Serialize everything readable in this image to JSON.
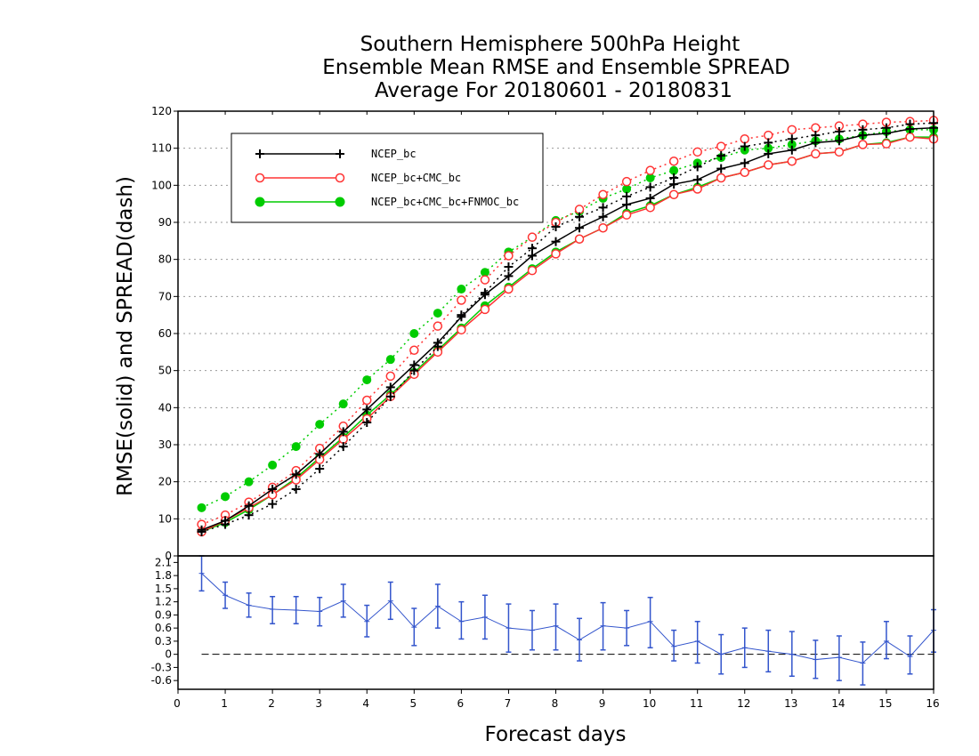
{
  "chart_data": [
    {
      "type": "line",
      "title": [
        "Southern Hemisphere 500hPa Height",
        "Ensemble Mean RMSE and Ensemble SPREAD",
        "Average For 20180601 - 20180831"
      ],
      "ylabel": "RMSE(solid) and SPREAD(dash)",
      "xlim": [
        0,
        16
      ],
      "ylim": [
        0,
        120
      ],
      "yticks": [
        0,
        10,
        20,
        30,
        40,
        50,
        60,
        70,
        80,
        90,
        100,
        110,
        120
      ],
      "grid": true,
      "legend_position": "top-left",
      "x": [
        0.5,
        1,
        1.5,
        2,
        2.5,
        3,
        3.5,
        4,
        4.5,
        5,
        5.5,
        6,
        6.5,
        7,
        7.5,
        8,
        8.5,
        9,
        9.5,
        10,
        10.5,
        11,
        11.5,
        12,
        12.5,
        13,
        13.5,
        14,
        14.5,
        15,
        15.5,
        16
      ],
      "series": [
        {
          "name": "NCEP_bc",
          "color": "#000000",
          "marker": "plus",
          "rmse": [
            7.0,
            9.5,
            13.5,
            18.0,
            22.0,
            27.5,
            33.5,
            39.5,
            45.5,
            51.5,
            57.5,
            64.5,
            70.5,
            75.5,
            81.0,
            84.8,
            88.5,
            91.5,
            94.8,
            96.5,
            100.3,
            101.5,
            104.5,
            106.0,
            108.5,
            109.5,
            111.5,
            112.0,
            113.5,
            114.0,
            115.2,
            115.5
          ],
          "spread": [
            6.5,
            8.5,
            11.0,
            14.0,
            18.0,
            23.5,
            29.5,
            36.0,
            43.0,
            50.0,
            56.5,
            65.0,
            71.0,
            78.0,
            83.0,
            88.8,
            91.5,
            94.0,
            97.0,
            99.5,
            102.0,
            105.0,
            108.0,
            110.5,
            111.5,
            112.5,
            113.5,
            114.5,
            115.0,
            115.5,
            116.5,
            116.8
          ]
        },
        {
          "name": "NCEP_bc+CMC_bc",
          "color": "#ff3333",
          "marker": "open-circle",
          "rmse": [
            6.5,
            9.5,
            13.0,
            16.5,
            20.5,
            26.0,
            31.5,
            37.0,
            43.0,
            49.0,
            55.0,
            61.0,
            66.5,
            72.0,
            77.0,
            81.5,
            85.5,
            88.5,
            92.0,
            94.0,
            97.5,
            99.0,
            102.0,
            103.5,
            105.5,
            106.5,
            108.5,
            109.0,
            111.0,
            111.2,
            113.0,
            112.5
          ],
          "spread": [
            8.5,
            11.0,
            14.5,
            18.5,
            23.0,
            29.0,
            35.0,
            42.0,
            48.5,
            55.5,
            62.0,
            69.0,
            74.5,
            81.0,
            86.0,
            90.0,
            93.5,
            97.5,
            101.0,
            104.0,
            106.5,
            109.0,
            110.5,
            112.5,
            113.5,
            115.0,
            115.5,
            116.0,
            116.5,
            117.0,
            117.2,
            117.5
          ]
        },
        {
          "name": "NCEP_bc+CMC_bc+FNMOC_bc",
          "color": "#00cc00",
          "marker": "filled-circle",
          "rmse": [
            6.5,
            9.0,
            12.5,
            16.5,
            21.0,
            26.5,
            32.0,
            38.0,
            43.5,
            49.5,
            55.5,
            61.5,
            67.5,
            72.5,
            77.5,
            82.0,
            85.5,
            88.5,
            92.5,
            94.5,
            97.5,
            99.5,
            102.0,
            103.5,
            105.5,
            106.5,
            108.5,
            109.0,
            111.0,
            111.5,
            113.0,
            113.0
          ],
          "spread": [
            13.0,
            16.0,
            20.0,
            24.5,
            29.5,
            35.5,
            41.0,
            47.5,
            53.0,
            60.0,
            65.5,
            72.0,
            76.5,
            82.0,
            86.0,
            90.5,
            93.0,
            96.5,
            99.0,
            102.0,
            104.0,
            106.0,
            107.5,
            109.5,
            110.0,
            111.0,
            112.0,
            112.5,
            113.5,
            114.5,
            115.0,
            115.0
          ]
        }
      ]
    },
    {
      "type": "line",
      "xlabel": "Forecast days",
      "xlim": [
        0,
        16
      ],
      "ylim": [
        -0.8,
        2.25
      ],
      "yticks": [
        -0.6,
        -0.3,
        0,
        0.3,
        0.6,
        0.9,
        1.2,
        1.5,
        1.8,
        2.1
      ],
      "xticks": [
        0,
        1,
        2,
        3,
        4,
        5,
        6,
        7,
        8,
        9,
        10,
        11,
        12,
        13,
        14,
        15,
        16
      ],
      "zero_line": "dashed",
      "series": [
        {
          "color": "#3355cc",
          "x": [
            0.5,
            1,
            1.5,
            2,
            2.5,
            3,
            3.5,
            4,
            4.5,
            5,
            5.5,
            6,
            6.5,
            7,
            7.5,
            8,
            8.5,
            9,
            9.5,
            10,
            10.5,
            11,
            11.5,
            12,
            12.5,
            13,
            13.5,
            14,
            14.5,
            15,
            15.5,
            16
          ],
          "values": [
            1.85,
            1.35,
            1.12,
            1.03,
            1.01,
            0.98,
            1.22,
            0.75,
            1.22,
            0.62,
            1.1,
            0.75,
            0.85,
            0.6,
            0.55,
            0.65,
            0.33,
            0.65,
            0.6,
            0.75,
            0.18,
            0.3,
            0.0,
            0.15,
            0.07,
            0.0,
            -0.12,
            -0.07,
            -0.2,
            0.3,
            -0.05,
            0.55
          ],
          "lower": [
            1.45,
            1.05,
            0.85,
            0.7,
            0.7,
            0.65,
            0.85,
            0.4,
            0.8,
            0.2,
            0.6,
            0.35,
            0.35,
            0.05,
            0.1,
            0.1,
            -0.15,
            0.1,
            0.2,
            0.15,
            -0.15,
            -0.2,
            -0.45,
            -0.3,
            -0.4,
            -0.5,
            -0.55,
            -0.6,
            -0.7,
            -0.1,
            -0.45,
            0.05
          ],
          "upper": [
            2.25,
            1.65,
            1.4,
            1.32,
            1.32,
            1.3,
            1.6,
            1.12,
            1.65,
            1.05,
            1.6,
            1.2,
            1.35,
            1.15,
            1.0,
            1.15,
            0.82,
            1.18,
            1.0,
            1.3,
            0.55,
            0.75,
            0.45,
            0.6,
            0.55,
            0.52,
            0.32,
            0.42,
            0.28,
            0.75,
            0.42,
            1.02
          ]
        }
      ]
    }
  ]
}
